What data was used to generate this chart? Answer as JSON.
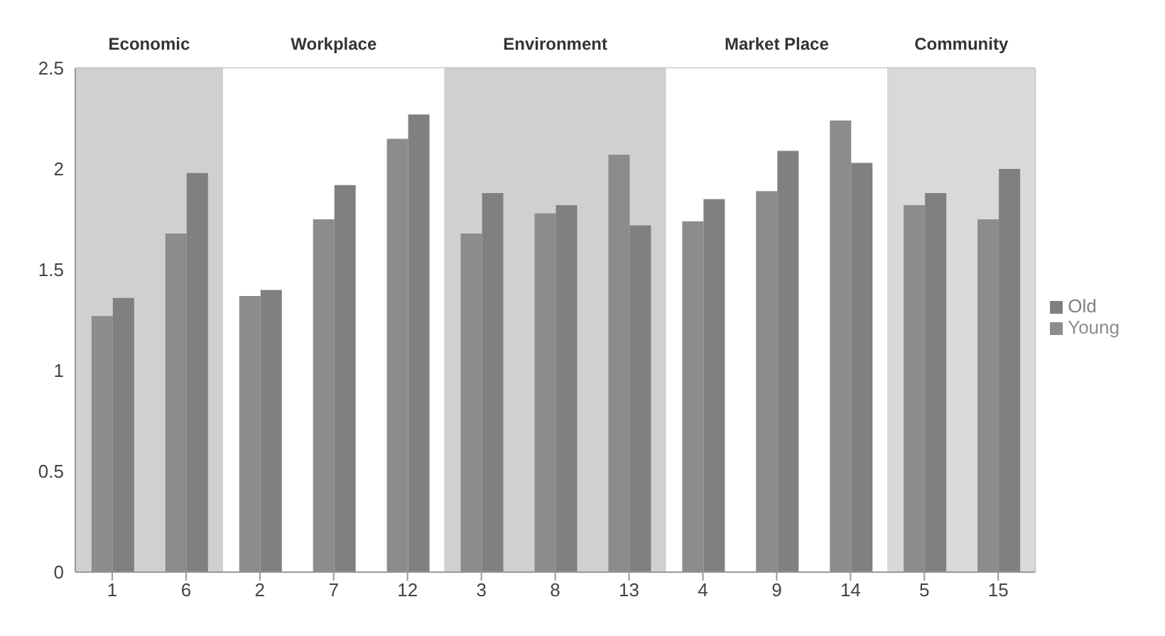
{
  "chart_data": {
    "type": "bar",
    "categories": [
      "1",
      "6",
      "2",
      "7",
      "12",
      "3",
      "8",
      "13",
      "4",
      "9",
      "14",
      "5",
      "15"
    ],
    "series": [
      {
        "name": "Young",
        "color": "#8c8c8c",
        "values": [
          1.27,
          1.68,
          1.37,
          1.75,
          2.15,
          1.68,
          1.78,
          2.07,
          1.74,
          1.89,
          2.24,
          1.82,
          1.75
        ]
      },
      {
        "name": "Old",
        "color": "#808080",
        "values": [
          1.36,
          1.98,
          1.4,
          1.92,
          2.27,
          1.88,
          1.82,
          1.72,
          1.85,
          2.09,
          2.03,
          1.88,
          2.0
        ]
      }
    ],
    "bands": [
      {
        "axis": "x",
        "from": "1",
        "to": "6",
        "label": "Economic",
        "color": "#d0d0d0"
      },
      {
        "axis": "x",
        "from": "2",
        "to": "12",
        "label": "Workplace",
        "color": "#ffffff"
      },
      {
        "axis": "x",
        "from": "3",
        "to": "13",
        "label": "Environment",
        "color": "#d0d0d0"
      },
      {
        "axis": "x",
        "from": "4",
        "to": "14",
        "label": "Market Place",
        "color": "#ffffff"
      },
      {
        "axis": "x",
        "from": "5",
        "to": "15",
        "label": "Community",
        "color": "#d9d9d9"
      }
    ],
    "ylim": [
      0,
      2.5
    ],
    "yticks": [
      0,
      0.5,
      1,
      1.5,
      2,
      2.5
    ],
    "grid": true,
    "legend": "right"
  }
}
